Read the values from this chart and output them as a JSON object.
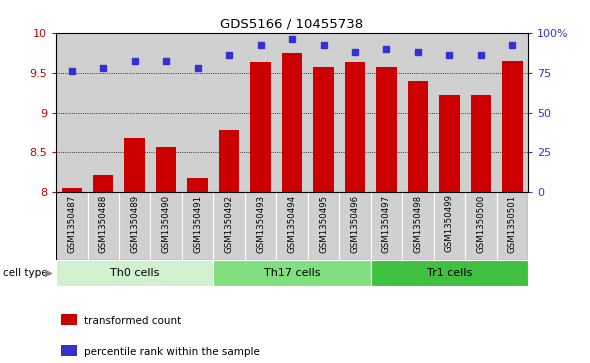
{
  "title": "GDS5166 / 10455738",
  "samples": [
    "GSM1350487",
    "GSM1350488",
    "GSM1350489",
    "GSM1350490",
    "GSM1350491",
    "GSM1350492",
    "GSM1350493",
    "GSM1350494",
    "GSM1350495",
    "GSM1350496",
    "GSM1350497",
    "GSM1350498",
    "GSM1350499",
    "GSM1350500",
    "GSM1350501"
  ],
  "bar_values": [
    8.06,
    8.22,
    8.68,
    8.57,
    8.18,
    8.78,
    9.63,
    9.75,
    9.57,
    9.63,
    9.57,
    9.4,
    9.22,
    9.22,
    9.65
  ],
  "dot_values": [
    76,
    78,
    82,
    82,
    78,
    86,
    92,
    96,
    92,
    88,
    90,
    88,
    86,
    86,
    92
  ],
  "bar_color": "#cc0000",
  "dot_color": "#3333cc",
  "ylim_left": [
    8.0,
    10.0
  ],
  "ylim_right": [
    0,
    100
  ],
  "yticks_left": [
    8.0,
    8.5,
    9.0,
    9.5,
    10.0
  ],
  "ytick_labels_left": [
    "8",
    "8.5",
    "9",
    "9.5",
    "10"
  ],
  "yticks_right": [
    0,
    25,
    50,
    75,
    100
  ],
  "ytick_labels_right": [
    "0",
    "25",
    "50",
    "75",
    "100%"
  ],
  "grid_lines": [
    8.5,
    9.0,
    9.5
  ],
  "cell_groups": [
    {
      "label": "Th0 cells",
      "start": 0,
      "end": 4,
      "color": "#d0f0d0"
    },
    {
      "label": "Th17 cells",
      "start": 5,
      "end": 9,
      "color": "#80e080"
    },
    {
      "label": "Tr1 cells",
      "start": 10,
      "end": 14,
      "color": "#40c040"
    }
  ],
  "legend_bar_label": "transformed count",
  "legend_dot_label": "percentile rank within the sample",
  "cell_type_label": "cell type",
  "tick_bg_color": "#d0d0d0",
  "plot_bg_color": "#ffffff"
}
